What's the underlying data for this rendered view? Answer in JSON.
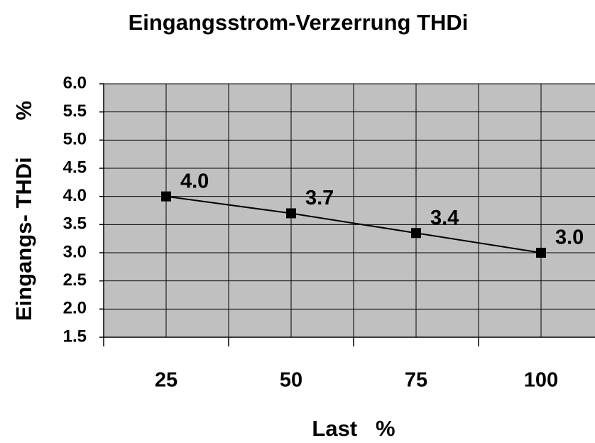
{
  "chart_data": {
    "type": "line",
    "title": "Eingangsstrom-Verzerrung THDi",
    "x_label": "Last   %",
    "y_label": "Eingangs- THDi      %",
    "categories": [
      "25",
      "50",
      "75",
      "100"
    ],
    "series": [
      {
        "color": "#000000",
        "values": [
          4,
          3.7,
          3.35,
          3
        ],
        "value_labels": [
          "4.0",
          "3.7",
          "3.4",
          "3.0"
        ]
      }
    ],
    "ylim": [
      1.5,
      6
    ],
    "yticks": [
      1.5,
      {
        "value": 2,
        "label": "2.0"
      },
      2.5,
      {
        "value": 3,
        "label": "3.0"
      },
      3.5,
      {
        "value": 4,
        "label": "4.0"
      },
      4.5,
      {
        "value": 5,
        "label": "5.0"
      },
      5.5,
      {
        "value": 6,
        "label": "6.0"
      }
    ],
    "grid": true
  }
}
